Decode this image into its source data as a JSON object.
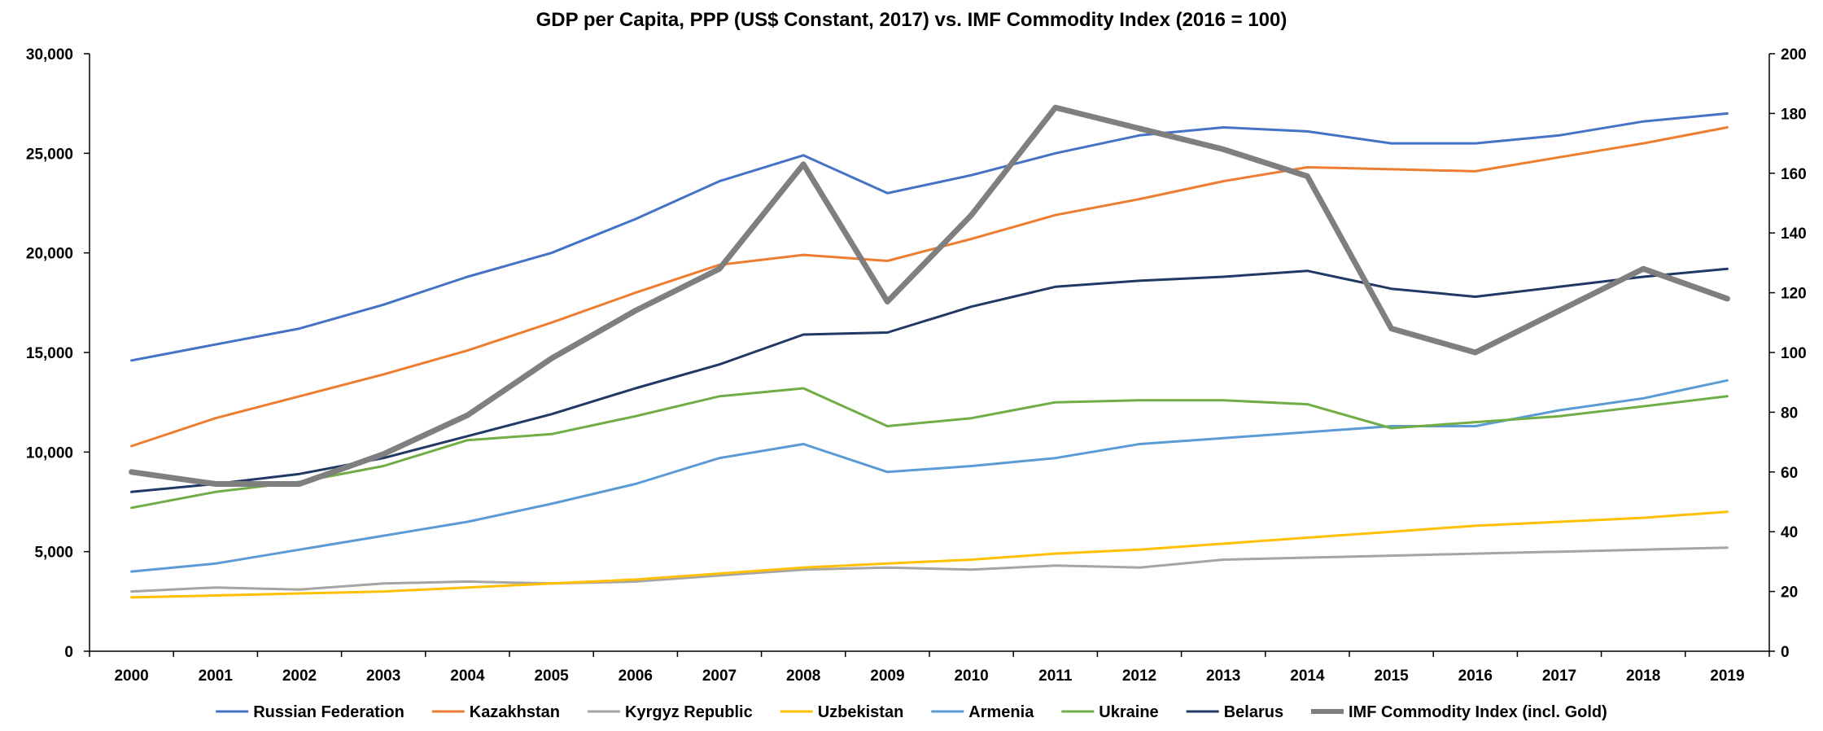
{
  "chart_data": {
    "type": "line",
    "title": "GDP per Capita, PPP (US$ Constant, 2017) vs. IMF Commodity Index (2016 = 100)",
    "x": [
      "2000",
      "2001",
      "2002",
      "2003",
      "2004",
      "2005",
      "2006",
      "2007",
      "2008",
      "2009",
      "2010",
      "2011",
      "2012",
      "2013",
      "2014",
      "2015",
      "2016",
      "2017",
      "2018",
      "2019"
    ],
    "y_left": {
      "range": [
        0,
        30000
      ],
      "ticks": [
        "0",
        "5,000",
        "10,000",
        "15,000",
        "20,000",
        "25,000",
        "30,000"
      ],
      "tick_values": [
        0,
        5000,
        10000,
        15000,
        20000,
        25000,
        30000
      ]
    },
    "y_right": {
      "range": [
        0,
        200
      ],
      "ticks": [
        "0",
        "20",
        "40",
        "60",
        "80",
        "100",
        "120",
        "140",
        "160",
        "180",
        "200"
      ],
      "tick_values": [
        0,
        20,
        40,
        60,
        80,
        100,
        120,
        140,
        160,
        180,
        200
      ]
    },
    "grid": false,
    "legend_position": "bottom",
    "series": [
      {
        "name": "Russian Federation",
        "axis": "left",
        "color": "#4472C4",
        "width": 3,
        "values": [
          14600,
          15400,
          16200,
          17400,
          18800,
          20000,
          21700,
          23600,
          24900,
          23000,
          23900,
          25000,
          25900,
          26300,
          26100,
          25500,
          25500,
          25900,
          26600,
          27000
        ]
      },
      {
        "name": "Kazakhstan",
        "axis": "left",
        "color": "#ED7D31",
        "width": 3,
        "values": [
          10300,
          11700,
          12800,
          13900,
          15100,
          16500,
          18000,
          19400,
          19900,
          19600,
          20700,
          21900,
          22700,
          23600,
          24300,
          24200,
          24100,
          24800,
          25500,
          26300
        ]
      },
      {
        "name": "Kyrgyz Republic",
        "axis": "left",
        "color": "#A5A5A5",
        "width": 3,
        "values": [
          3000,
          3200,
          3100,
          3400,
          3500,
          3400,
          3500,
          3800,
          4100,
          4200,
          4100,
          4300,
          4200,
          4600,
          4700,
          4800,
          4900,
          5000,
          5100,
          5200
        ]
      },
      {
        "name": "Uzbekistan",
        "axis": "left",
        "color": "#FFC000",
        "width": 3,
        "values": [
          2700,
          2800,
          2900,
          3000,
          3200,
          3400,
          3600,
          3900,
          4200,
          4400,
          4600,
          4900,
          5100,
          5400,
          5700,
          6000,
          6300,
          6500,
          6700,
          7000
        ]
      },
      {
        "name": "Armenia",
        "axis": "left",
        "color": "#5B9BD5",
        "width": 3,
        "values": [
          4000,
          4400,
          5100,
          5800,
          6500,
          7400,
          8400,
          9700,
          10400,
          9000,
          9300,
          9700,
          10400,
          10700,
          11000,
          11300,
          11300,
          12100,
          12700,
          13600
        ]
      },
      {
        "name": "Ukraine",
        "axis": "left",
        "color": "#70AD47",
        "width": 3,
        "values": [
          7200,
          8000,
          8500,
          9300,
          10600,
          10900,
          11800,
          12800,
          13200,
          11300,
          11700,
          12500,
          12600,
          12600,
          12400,
          11200,
          11500,
          11800,
          12300,
          12800
        ]
      },
      {
        "name": "Belarus",
        "axis": "left",
        "color": "#203864",
        "width": 3,
        "values": [
          8000,
          8400,
          8900,
          9700,
          10800,
          11900,
          13200,
          14400,
          15900,
          16000,
          17300,
          18300,
          18600,
          18800,
          19100,
          18200,
          17800,
          18300,
          18800,
          19200
        ]
      },
      {
        "name": "IMF Commodity Index (incl. Gold)",
        "axis": "right",
        "color": "#7F7F7F",
        "width": 7,
        "values": [
          60,
          56,
          56,
          66,
          79,
          98,
          114,
          128,
          163,
          117,
          146,
          182,
          175,
          168,
          159,
          108,
          100,
          114,
          128,
          118
        ]
      }
    ]
  }
}
